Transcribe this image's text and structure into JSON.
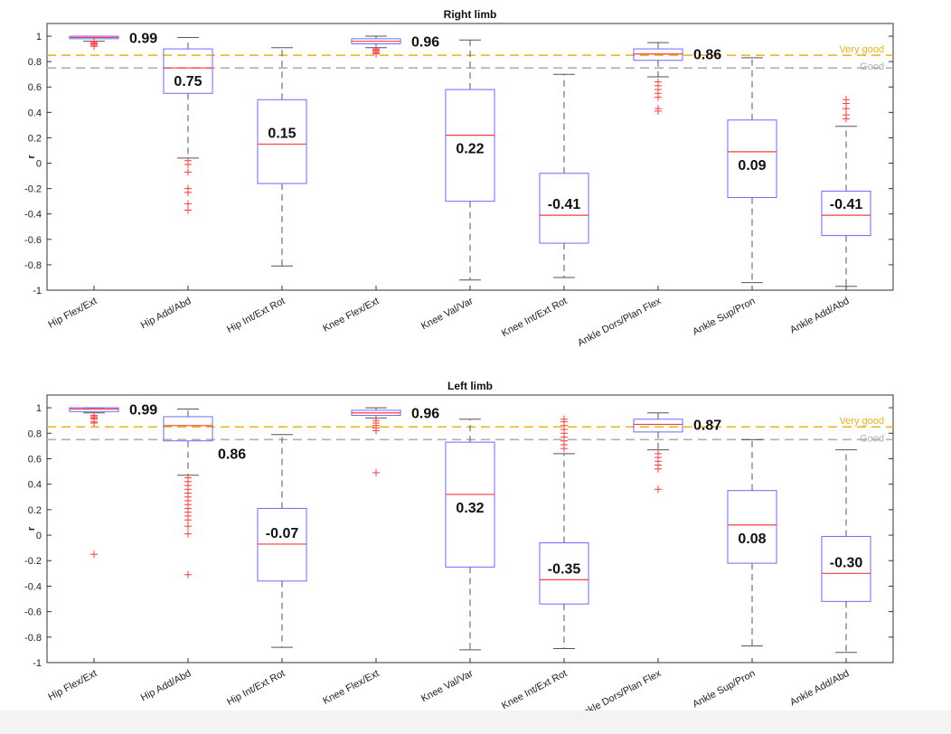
{
  "chart_data": [
    {
      "type": "box",
      "title": "Right limb",
      "ylabel": "r",
      "ylim": [
        -1,
        1.1
      ],
      "yticks": [
        -1,
        -0.8,
        -0.6,
        -0.4,
        -0.2,
        0,
        0.2,
        0.4,
        0.6,
        0.8,
        1
      ],
      "ytick_labels": [
        "-1",
        "-0.8",
        "-0.6",
        "-0.4",
        "-0.2",
        "0",
        "0.2",
        "0.4",
        "0.6",
        "0.8",
        "1"
      ],
      "categories": [
        "Hip Flex/Ext",
        "Hip Add/Abd",
        "Hip Int/Ext Rot",
        "Knee Flex/Ext",
        "Knee Val/Var",
        "Knee Int/Ext Rot",
        "Ankle Dors/Plan Flex",
        "Ankle Sup/Pron",
        "Ankle Add/Abd"
      ],
      "boxes": [
        {
          "whisker_low": 0.96,
          "q1": 0.98,
          "median": 0.99,
          "q3": 1.0,
          "whisker_high": 1.0,
          "outliers": [
            0.92,
            0.93,
            0.94,
            0.94,
            0.95,
            0.95,
            0.96
          ],
          "label": "0.99",
          "label_pos": "right"
        },
        {
          "whisker_low": 0.04,
          "q1": 0.55,
          "median": 0.75,
          "q3": 0.9,
          "whisker_high": 0.99,
          "outliers": [
            0.02,
            -0.01,
            -0.07,
            -0.2,
            -0.23,
            -0.32,
            -0.37
          ],
          "label": "0.75",
          "label_pos": "below"
        },
        {
          "whisker_low": -0.81,
          "q1": -0.16,
          "median": 0.15,
          "q3": 0.5,
          "whisker_high": 0.91,
          "outliers": [],
          "label": "0.15",
          "label_pos": "above"
        },
        {
          "whisker_low": 0.91,
          "q1": 0.94,
          "median": 0.96,
          "q3": 0.98,
          "whisker_high": 1.0,
          "outliers": [
            0.86,
            0.87,
            0.88,
            0.89,
            0.9
          ],
          "label": "0.96",
          "label_pos": "right"
        },
        {
          "whisker_low": -0.92,
          "q1": -0.3,
          "median": 0.22,
          "q3": 0.58,
          "whisker_high": 0.97,
          "outliers": [],
          "label": "0.22",
          "label_pos": "below"
        },
        {
          "whisker_low": -0.9,
          "q1": -0.63,
          "median": -0.41,
          "q3": -0.08,
          "whisker_high": 0.7,
          "outliers": [],
          "label": "-0.41",
          "label_pos": "above"
        },
        {
          "whisker_low": 0.68,
          "q1": 0.81,
          "median": 0.86,
          "q3": 0.9,
          "whisker_high": 0.95,
          "outliers": [
            0.64,
            0.61,
            0.58,
            0.55,
            0.52,
            0.43,
            0.41
          ],
          "label": "0.86",
          "label_pos": "right"
        },
        {
          "whisker_low": -0.94,
          "q1": -0.27,
          "median": 0.09,
          "q3": 0.34,
          "whisker_high": 0.83,
          "outliers": [],
          "label": "0.09",
          "label_pos": "below"
        },
        {
          "whisker_low": -0.97,
          "q1": -0.57,
          "median": -0.41,
          "q3": -0.22,
          "whisker_high": 0.29,
          "outliers": [
            0.5,
            0.47,
            0.43,
            0.38,
            0.35
          ],
          "label": "-0.41",
          "label_pos": "above"
        }
      ],
      "reference_lines": [
        {
          "value": 0.85,
          "label": "Very good",
          "color": "#e8b417"
        },
        {
          "value": 0.75,
          "label": "Good",
          "color": "#b0b0b0"
        }
      ]
    },
    {
      "type": "box",
      "title": "Left limb",
      "ylabel": "r",
      "ylim": [
        -1,
        1.1
      ],
      "yticks": [
        -1,
        -0.8,
        -0.6,
        -0.4,
        -0.2,
        0,
        0.2,
        0.4,
        0.6,
        0.8,
        1
      ],
      "ytick_labels": [
        "-1",
        "-0.8",
        "-0.6",
        "-0.4",
        "-0.2",
        "0",
        "0.2",
        "0.4",
        "0.6",
        "0.8",
        "1"
      ],
      "categories": [
        "Hip Flex/Ext",
        "Hip Add/Abd",
        "Hip Int/Ext Rot",
        "Knee Flex/Ext",
        "Knee Val/Var",
        "Knee Int/Ext Rot",
        "Ankle Dors/Plan Flex",
        "Ankle Sup/Pron",
        "Ankle Add/Abd"
      ],
      "boxes": [
        {
          "whisker_low": 0.96,
          "q1": 0.97,
          "median": 0.99,
          "q3": 1.0,
          "whisker_high": 1.0,
          "outliers": [
            0.94,
            0.93,
            0.92,
            0.91,
            0.89,
            0.88,
            -0.15
          ],
          "label": "0.99",
          "label_pos": "right"
        },
        {
          "whisker_low": 0.47,
          "q1": 0.74,
          "median": 0.86,
          "q3": 0.93,
          "whisker_high": 0.99,
          "outliers": [
            0.45,
            0.42,
            0.39,
            0.36,
            0.33,
            0.3,
            0.27,
            0.24,
            0.21,
            0.18,
            0.15,
            0.12,
            0.07,
            0.01,
            -0.31
          ],
          "label": "0.86",
          "label_pos": "belowright"
        },
        {
          "whisker_low": -0.88,
          "q1": -0.36,
          "median": -0.07,
          "q3": 0.21,
          "whisker_high": 0.79,
          "outliers": [],
          "label": "-0.07",
          "label_pos": "above"
        },
        {
          "whisker_low": 0.92,
          "q1": 0.94,
          "median": 0.96,
          "q3": 0.98,
          "whisker_high": 1.0,
          "outliers": [
            0.9,
            0.88,
            0.86,
            0.84,
            0.82,
            0.49
          ],
          "label": "0.96",
          "label_pos": "right"
        },
        {
          "whisker_low": -0.9,
          "q1": -0.25,
          "median": 0.32,
          "q3": 0.73,
          "whisker_high": 0.91,
          "outliers": [],
          "label": "0.32",
          "label_pos": "below"
        },
        {
          "whisker_low": -0.89,
          "q1": -0.54,
          "median": -0.35,
          "q3": -0.06,
          "whisker_high": 0.64,
          "outliers": [
            0.91,
            0.89,
            0.86,
            0.83,
            0.8,
            0.77,
            0.74,
            0.71,
            0.68
          ],
          "label": "-0.35",
          "label_pos": "above"
        },
        {
          "whisker_low": 0.67,
          "q1": 0.81,
          "median": 0.87,
          "q3": 0.91,
          "whisker_high": 0.96,
          "outliers": [
            0.64,
            0.61,
            0.58,
            0.55,
            0.52,
            0.36
          ],
          "label": "0.87",
          "label_pos": "right"
        },
        {
          "whisker_low": -0.87,
          "q1": -0.22,
          "median": 0.08,
          "q3": 0.35,
          "whisker_high": 0.75,
          "outliers": [],
          "label": "0.08",
          "label_pos": "below"
        },
        {
          "whisker_low": -0.92,
          "q1": -0.52,
          "median": -0.3,
          "q3": -0.01,
          "whisker_high": 0.67,
          "outliers": [],
          "label": "-0.30",
          "label_pos": "above"
        }
      ],
      "reference_lines": [
        {
          "value": 0.85,
          "label": "Very good",
          "color": "#e8b417"
        },
        {
          "value": 0.75,
          "label": "Good",
          "color": "#b0b0b0"
        }
      ]
    }
  ],
  "colors": {
    "box": "#6b6bff",
    "median": "#ff3b3b",
    "outlier": "#ff3b3b",
    "whisker": "#555555",
    "axis": "#333333",
    "grid": "#cfcfcf"
  }
}
